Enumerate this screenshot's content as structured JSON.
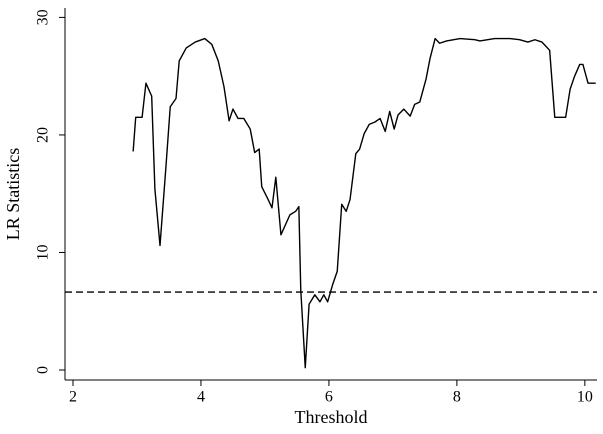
{
  "chart_data": {
    "type": "line",
    "xlabel": "Threshold",
    "ylabel": "LR Statistics",
    "xlim": [
      1.875,
      10.19
    ],
    "ylim": [
      -0.85,
      30.8
    ],
    "xticks": [
      2,
      4,
      6,
      8,
      10
    ],
    "yticks": [
      0,
      10,
      20,
      30
    ],
    "grid": false,
    "reference_line": 6.63,
    "series": [
      {
        "color": "#000000",
        "x": [
          2.94,
          2.98,
          3.08,
          3.14,
          3.23,
          3.28,
          3.36,
          3.45,
          3.52,
          3.61,
          3.66,
          3.77,
          3.91,
          4.06,
          4.17,
          4.27,
          4.36,
          4.44,
          4.5,
          4.58,
          4.67,
          4.77,
          4.84,
          4.91,
          4.95,
          5.05,
          5.11,
          5.17,
          5.25,
          5.39,
          5.48,
          5.53,
          5.56,
          5.63,
          5.69,
          5.78,
          5.86,
          5.92,
          5.98,
          6.06,
          6.13,
          6.2,
          6.27,
          6.33,
          6.42,
          6.48,
          6.55,
          6.63,
          6.72,
          6.8,
          6.88,
          6.95,
          7.02,
          7.08,
          7.17,
          7.27,
          7.34,
          7.42,
          7.52,
          7.58,
          7.66,
          7.73,
          7.84,
          8.05,
          8.28,
          8.36,
          8.59,
          8.83,
          8.98,
          9.11,
          9.22,
          9.33,
          9.45,
          9.53,
          9.7,
          9.77,
          9.84,
          9.92,
          9.97,
          10.05,
          10.17
        ],
        "values": [
          18.6,
          21.5,
          21.5,
          24.4,
          23.3,
          15.4,
          10.6,
          17.1,
          22.4,
          23.1,
          26.3,
          27.4,
          27.9,
          28.2,
          27.7,
          26.3,
          24.1,
          21.2,
          22.2,
          21.4,
          21.4,
          20.5,
          18.5,
          18.8,
          15.6,
          14.5,
          13.8,
          16.4,
          11.5,
          13.2,
          13.5,
          13.9,
          6.8,
          0.2,
          5.6,
          6.4,
          5.8,
          6.4,
          5.8,
          7.3,
          8.4,
          14.1,
          13.5,
          14.5,
          18.4,
          18.8,
          20.1,
          20.9,
          21.1,
          21.4,
          20.3,
          22.0,
          20.5,
          21.7,
          22.2,
          21.6,
          22.6,
          22.8,
          24.8,
          26.5,
          28.2,
          27.8,
          28.0,
          28.2,
          28.1,
          28.0,
          28.2,
          28.2,
          28.1,
          27.9,
          28.1,
          27.9,
          27.2,
          21.5,
          21.5,
          23.9,
          25.0,
          26.0,
          26.0,
          24.4,
          24.4
        ]
      }
    ]
  }
}
